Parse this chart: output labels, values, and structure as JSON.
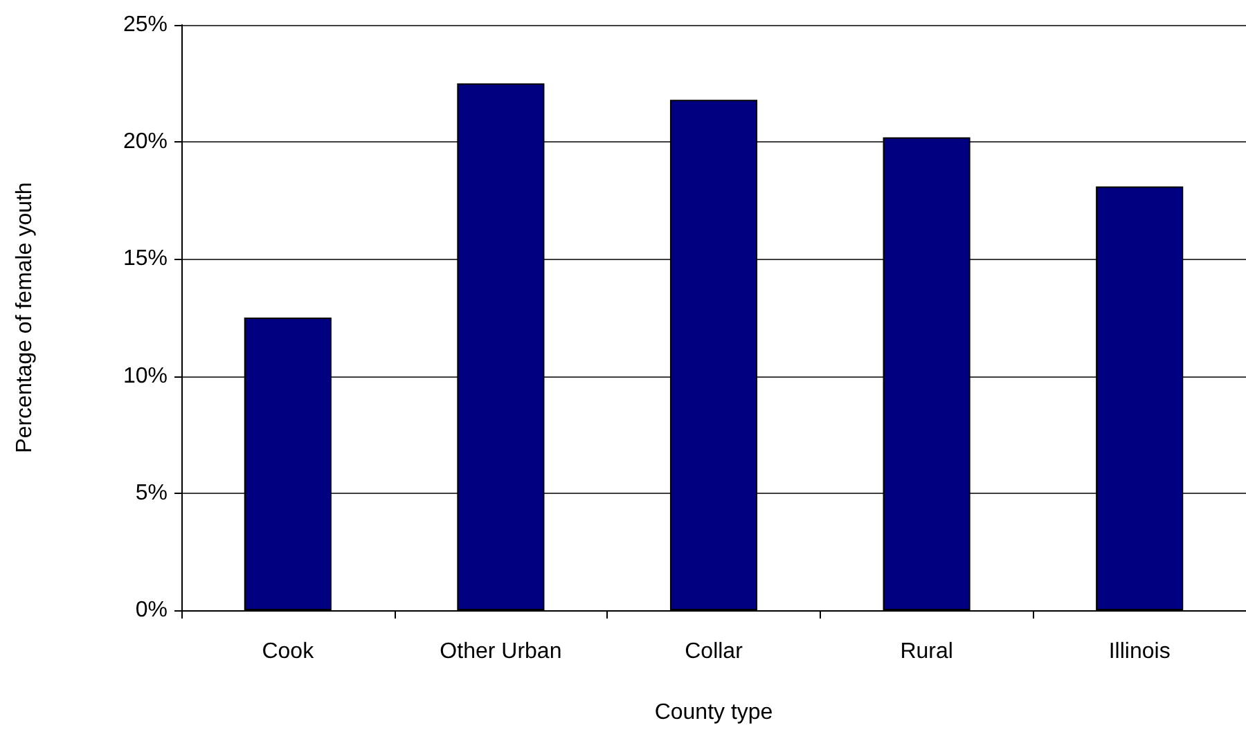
{
  "chart_data": {
    "type": "bar",
    "xlabel": "County type",
    "ylabel": "Percentage of female youth",
    "categories": [
      "Cook",
      "Other Urban",
      "Collar",
      "Rural",
      "Illinois"
    ],
    "values": [
      12.5,
      22.5,
      21.8,
      20.2,
      18.1
    ],
    "color": "#000080",
    "ylim": [
      0,
      25
    ],
    "yticks": [
      {
        "value": 0,
        "label": "0%"
      },
      {
        "value": 5,
        "label": "5%"
      },
      {
        "value": 10,
        "label": "10%"
      },
      {
        "value": 15,
        "label": "15%"
      },
      {
        "value": 20,
        "label": "20%"
      },
      {
        "value": 25,
        "label": "25%"
      }
    ],
    "grid": "y"
  }
}
